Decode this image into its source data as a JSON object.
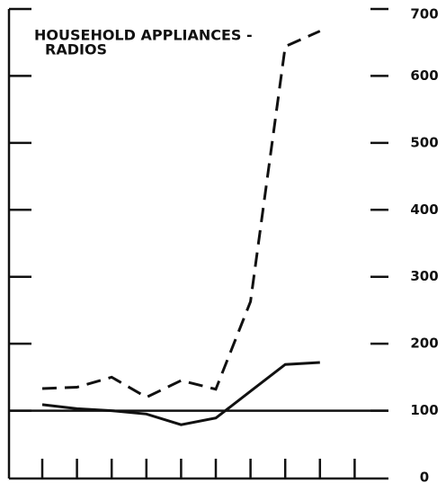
{
  "chart_data": {
    "type": "line",
    "title": "HOUSEHOLD APPLIANCES -",
    "subtitle": "RADIOS",
    "categories": [
      null,
      null,
      null,
      null,
      null,
      null,
      null,
      null,
      null,
      null
    ],
    "series": [
      {
        "color": "#111111",
        "dash": true,
        "values": [
          133,
          135,
          150,
          120,
          145,
          132,
          263,
          644,
          667,
          null
        ]
      },
      {
        "color": "#111111",
        "dash": false,
        "values": [
          109,
          103,
          100,
          95,
          79,
          89,
          129,
          169,
          172,
          null
        ]
      }
    ],
    "ylim": [
      0,
      700
    ],
    "yticks": [
      0,
      100,
      200,
      300,
      400,
      500,
      600,
      700
    ],
    "reference_line": 100
  }
}
